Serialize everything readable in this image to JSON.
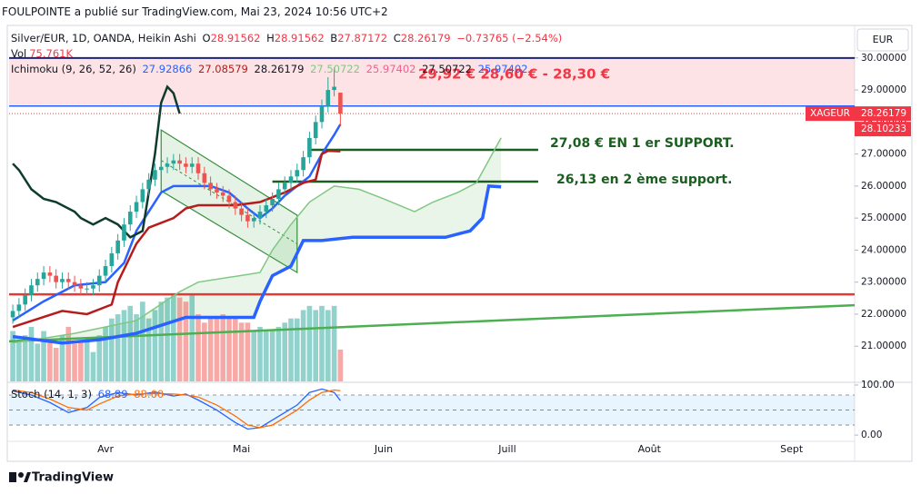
{
  "header": {
    "publisher": "FOULPOINTE a publié sur TradingView.com, Mai 23, 2024 10:56 UTC+2",
    "ohlc_labels": [
      "O",
      "H",
      "B",
      "C"
    ],
    "change": "−0.73765 (−2.54%)",
    "ichimoku_label": "Ichimoku (9, 26, 52, 26)",
    "ichimoku_values": [
      "27.92866",
      "27.08579",
      "28.26179",
      "27.50722",
      "25.97402",
      "27.50722",
      "25.97402"
    ],
    "currency": "EUR"
  },
  "chart_data": [
    {
      "type": "candlestick",
      "title": "Silver/EUR, 1D, OANDA, Heikin Ashi",
      "open": [
        21.9,
        22.1,
        22.3,
        22.6,
        22.9,
        23.1,
        23.3,
        23.2,
        23.0,
        23.1,
        23.0,
        22.9,
        22.8,
        22.8,
        22.9,
        23.2,
        23.5,
        23.9,
        24.3,
        24.8,
        25.2,
        25.5,
        25.9,
        26.2,
        26.5,
        26.6,
        26.7,
        26.8,
        26.7,
        26.6,
        26.7,
        26.4,
        26.1,
        25.9,
        25.8,
        25.7,
        25.5,
        25.3,
        25.1,
        24.9,
        25.0,
        25.2,
        25.4,
        25.6,
        25.9,
        26.1,
        26.3,
        26.5,
        26.9,
        27.5,
        28.0,
        28.5,
        29.0,
        28.91562
      ],
      "high": [
        22.3,
        22.5,
        22.8,
        23.1,
        23.3,
        23.5,
        23.5,
        23.4,
        23.3,
        23.3,
        23.2,
        23.1,
        23.0,
        23.1,
        23.4,
        23.7,
        24.1,
        24.5,
        25.0,
        25.4,
        25.7,
        26.1,
        26.4,
        26.7,
        26.8,
        26.9,
        27.0,
        27.0,
        26.9,
        26.9,
        26.9,
        26.6,
        26.3,
        26.1,
        26.0,
        25.9,
        25.7,
        25.5,
        25.3,
        25.2,
        25.4,
        25.6,
        25.8,
        26.1,
        26.3,
        26.5,
        26.7,
        27.1,
        27.7,
        28.2,
        28.7,
        29.4,
        29.7,
        28.91562
      ],
      "low": [
        21.7,
        21.9,
        22.1,
        22.4,
        22.7,
        22.9,
        23.0,
        22.8,
        22.8,
        22.8,
        22.7,
        22.6,
        22.6,
        22.6,
        22.7,
        23.0,
        23.3,
        23.7,
        24.1,
        24.6,
        25.0,
        25.3,
        25.7,
        26.0,
        26.3,
        26.4,
        26.5,
        26.5,
        26.4,
        26.4,
        26.2,
        25.9,
        25.7,
        25.6,
        25.5,
        25.3,
        25.1,
        24.9,
        24.7,
        24.7,
        24.8,
        25.0,
        25.2,
        25.4,
        25.7,
        25.9,
        26.1,
        26.3,
        26.7,
        27.3,
        27.8,
        28.3,
        28.8,
        27.87172
      ],
      "close": [
        22.1,
        22.3,
        22.6,
        22.9,
        23.1,
        23.3,
        23.2,
        23.0,
        23.1,
        23.0,
        22.9,
        22.8,
        22.8,
        22.9,
        23.2,
        23.5,
        23.9,
        24.3,
        24.8,
        25.2,
        25.5,
        25.9,
        26.2,
        26.5,
        26.6,
        26.7,
        26.8,
        26.7,
        26.6,
        26.7,
        26.4,
        26.1,
        25.9,
        25.8,
        25.7,
        25.5,
        25.3,
        25.1,
        24.9,
        25.0,
        25.2,
        25.4,
        25.6,
        25.9,
        26.1,
        26.3,
        26.5,
        26.9,
        27.5,
        28.0,
        28.5,
        29.0,
        29.1,
        28.26179
      ],
      "up_color": "#26a69a",
      "down_color": "#ef5350",
      "volume": {
        "name": "Vol",
        "values": [
          120000,
          100000,
          110000,
          130000,
          90000,
          120000,
          100000,
          80000,
          110000,
          130000,
          90000,
          95000,
          100000,
          70000,
          110000,
          130000,
          150000,
          160000,
          170000,
          180000,
          160000,
          190000,
          150000,
          170000,
          190000,
          200000,
          210000,
          200000,
          190000,
          210000,
          160000,
          140000,
          150000,
          150000,
          160000,
          150000,
          150000,
          140000,
          140000,
          120000,
          130000,
          120000,
          120000,
          130000,
          140000,
          150000,
          150000,
          170000,
          180000,
          170000,
          180000,
          170000,
          180000,
          75761
        ],
        "value_label": "75.761K",
        "vlim": [
          0,
          790000
        ],
        "label_color": "#f23645"
      },
      "ylim": [
        19.9,
        30.25
      ],
      "yticks": [
        {
          "value": 30,
          "label": "30.00000"
        },
        {
          "value": 29,
          "label": "29.00000"
        },
        {
          "value": 28,
          "label": "28.00000"
        },
        {
          "value": 27,
          "label": "27.00000"
        },
        {
          "value": 26,
          "label": "26.00000"
        },
        {
          "value": 25,
          "label": "25.00000"
        },
        {
          "value": 24,
          "label": "24.00000"
        },
        {
          "value": 23,
          "label": "23.00000"
        },
        {
          "value": 22,
          "label": "22.00000"
        },
        {
          "value": 21,
          "label": "21.00000"
        }
      ],
      "xlim": [
        -0.6,
        136.2
      ],
      "xticks": [
        {
          "value": 15,
          "label": "Avr"
        },
        {
          "value": 37,
          "label": "Mai"
        },
        {
          "value": 60,
          "label": "Juin"
        },
        {
          "value": 80,
          "label": "Juill"
        },
        {
          "value": 103,
          "label": "Août"
        },
        {
          "value": 126,
          "label": "Sept"
        }
      ],
      "series": [
        {
          "color": "#2962ff",
          "width": 2.5,
          "x": [
            0,
            5,
            10,
            15,
            18,
            20,
            22,
            24,
            26,
            28,
            32,
            35,
            38,
            40,
            42,
            44,
            46,
            48,
            50,
            52,
            53
          ],
          "values": [
            21.8,
            22.4,
            22.9,
            23.0,
            23.6,
            24.6,
            25.2,
            25.8,
            26.0,
            26.0,
            26.0,
            25.8,
            25.3,
            25.0,
            25.3,
            25.7,
            26.0,
            26.3,
            27.0,
            27.6,
            27.92866
          ]
        },
        {
          "color": "#b71c1c",
          "width": 2.5,
          "x": [
            0,
            8,
            12,
            16,
            17,
            20,
            22,
            26,
            28,
            30,
            36,
            40,
            44,
            47,
            49,
            50,
            51,
            53
          ],
          "values": [
            21.6,
            22.1,
            22.0,
            22.3,
            23.0,
            24.2,
            24.7,
            25.0,
            25.3,
            25.4,
            25.4,
            25.5,
            25.8,
            26.1,
            26.2,
            27.0,
            27.1,
            27.08579
          ]
        },
        {
          "color": "#0d3b2e",
          "width": 2.5,
          "x": [
            0,
            1,
            3,
            5,
            7,
            10,
            11,
            13,
            15,
            17,
            19,
            21,
            22,
            23,
            24,
            25,
            26,
            27
          ],
          "values": [
            26.7,
            26.5,
            25.9,
            25.6,
            25.5,
            25.2,
            25.0,
            24.8,
            25.0,
            24.8,
            24.4,
            24.6,
            25.8,
            27.0,
            28.6,
            29.1,
            28.9,
            28.26179
          ]
        },
        {
          "color": "#81c784",
          "width": 1.5,
          "x": [
            0,
            10,
            20,
            27,
            30,
            40,
            42,
            45,
            48,
            52,
            56,
            60,
            65,
            68,
            72,
            75,
            77,
            79
          ],
          "values": [
            21.1,
            21.4,
            21.8,
            22.7,
            23.0,
            23.3,
            24.0,
            24.8,
            25.5,
            26.0,
            25.9,
            25.6,
            25.2,
            25.5,
            25.8,
            26.1,
            26.8,
            27.50722
          ]
        },
        {
          "color": "#2962ff",
          "width": 3.5,
          "x": [
            0,
            8,
            14,
            20,
            28,
            39,
            40,
            42,
            45,
            47,
            50,
            55,
            70,
            74,
            76,
            77,
            79
          ],
          "values": [
            21.3,
            21.1,
            21.2,
            21.4,
            21.9,
            21.9,
            22.4,
            23.2,
            23.5,
            24.3,
            24.3,
            24.4,
            24.4,
            24.6,
            25.0,
            26.0,
            25.97402
          ]
        }
      ],
      "cloud_color": "rgba(76,175,80,0.13)",
      "zone": {
        "from": 28.5,
        "to": 30,
        "color": "rgba(242,54,69,0.14)"
      },
      "levels": [
        {
          "value": 30,
          "color": "#1a237e",
          "width": 2
        },
        {
          "value": 28.5,
          "color": "#2962ff",
          "width": 1.5
        },
        {
          "value": 22.62,
          "color": "#e53935",
          "width": 2.5
        }
      ],
      "segments": [
        {
          "x": [
            48,
            85
          ],
          "values": [
            27.13,
            27.13
          ],
          "color": "#1b5e20",
          "width": 2.5
        },
        {
          "x": [
            42,
            85
          ],
          "values": [
            26.14,
            26.14
          ],
          "color": "#1b5e20",
          "width": 2.5
        },
        {
          "x": [
            -0.6,
            136.2
          ],
          "values": [
            21.15,
            22.28
          ],
          "color": "#4caf50",
          "width": 2.5
        }
      ],
      "channel": {
        "x": [
          24,
          46
        ],
        "upper": [
          27.75,
          25.09
        ],
        "lower": [
          25.85,
          23.3
        ],
        "color": "#388e3c",
        "fill": "rgba(76,175,80,0.15)"
      },
      "annotations": [
        {
          "text": "29,92 €  28,60 € - 28,30 €",
          "color": "#f23645"
        },
        {
          "text": "27,08 € EN 1 er SUPPORT.",
          "color": "#1b5e20"
        },
        {
          "text": "26,13 en 2 ème support.",
          "color": "#1b5e20"
        }
      ],
      "price_label": "XAGEUR",
      "second_price": 28.10233,
      "price_color": "#f23645"
    },
    {
      "type": "line",
      "title": "Stoch (14, 1, 3)",
      "legend_values": [
        "68.89",
        "88.60"
      ],
      "series": [
        {
          "color": "#2962ff",
          "x": [
            0,
            3,
            6,
            9,
            12,
            14,
            17,
            20,
            23,
            26,
            28,
            30,
            33,
            36,
            38,
            40,
            42,
            44,
            46,
            48,
            50,
            52,
            53
          ],
          "values": [
            88,
            80,
            65,
            45,
            55,
            75,
            85,
            80,
            86,
            78,
            82,
            70,
            50,
            25,
            12,
            15,
            30,
            45,
            60,
            85,
            92,
            85,
            68.89
          ]
        },
        {
          "color": "#ff6d00",
          "x": [
            0,
            3,
            6,
            9,
            12,
            14,
            17,
            20,
            23,
            26,
            28,
            30,
            33,
            36,
            38,
            40,
            42,
            44,
            46,
            48,
            50,
            52,
            53
          ],
          "values": [
            90,
            85,
            72,
            55,
            50,
            62,
            78,
            82,
            83,
            82,
            80,
            76,
            60,
            38,
            20,
            15,
            20,
            35,
            50,
            70,
            85,
            90,
            88.6
          ]
        }
      ],
      "ylim": [
        -10.7,
        105.4
      ],
      "yticks": [
        {
          "value": 100,
          "label": "100.00"
        },
        {
          "value": 0,
          "label": "0.00"
        }
      ],
      "levels": [
        80,
        50,
        20
      ],
      "band_color": "rgba(33,150,243,0.1)"
    }
  ],
  "footer": {
    "logo": "TradingView"
  }
}
